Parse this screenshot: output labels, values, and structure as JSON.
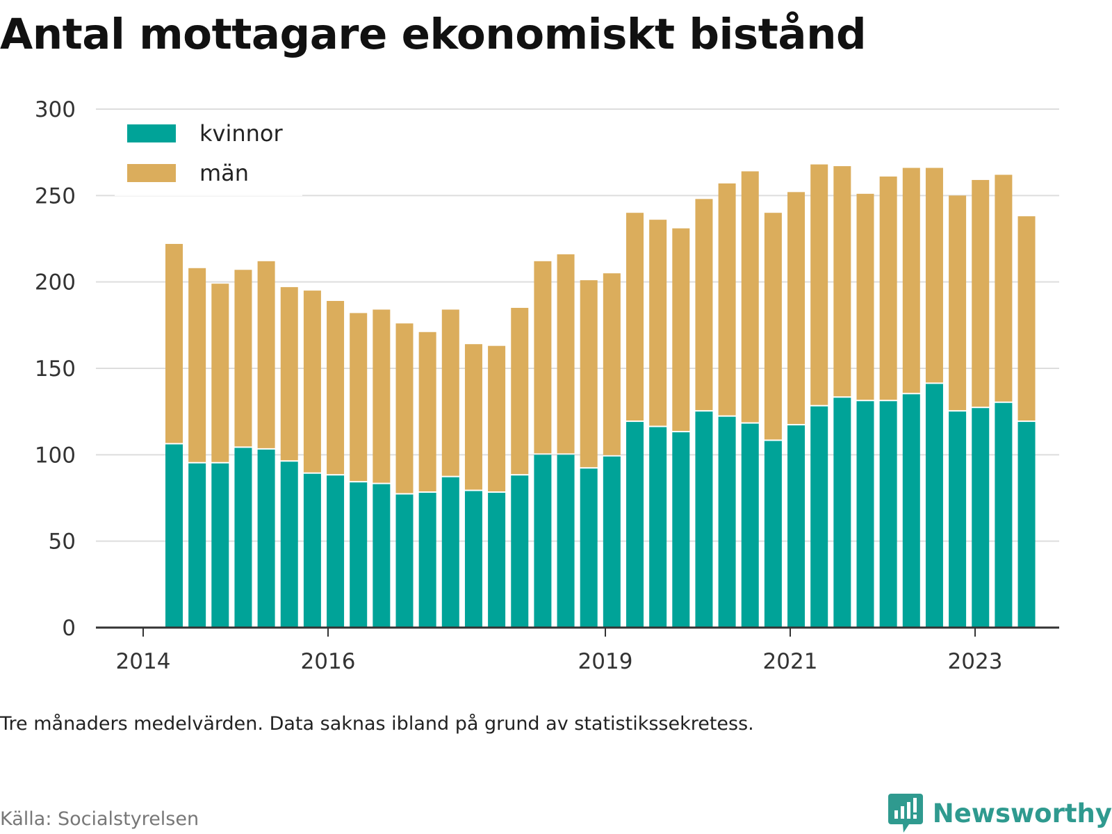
{
  "title": "Antal mottagare ekonomiskt bistånd",
  "note": "Tre månaders medelvärden. Data saknas ibland på grund av statistikssekretess.",
  "source": "Källa: Socialstyrelsen",
  "brand": {
    "name": "Newsworthy",
    "icon": "newsworthy-logo-icon",
    "color": "#2f9a8f"
  },
  "colors": {
    "kvinnor": "#00a398",
    "man": "#dbad5c",
    "grid": "#dddddd",
    "axis": "#333333"
  },
  "chart_data": {
    "type": "bar",
    "stacked": true,
    "y_ticks": [
      0,
      50,
      100,
      150,
      200,
      250,
      300
    ],
    "ylim": [
      0,
      300
    ],
    "x_ticks": [
      "2014",
      "2016",
      "2019",
      "2021",
      "2023"
    ],
    "legend_position": "top-left",
    "grid": true,
    "series": [
      {
        "name": "kvinnor",
        "color": "#00a398",
        "values": [
          106,
          95,
          95,
          104,
          103,
          96,
          89,
          88,
          84,
          83,
          77,
          78,
          87,
          79,
          78,
          88,
          100,
          100,
          92,
          99,
          119,
          116,
          113,
          125,
          122,
          118,
          108,
          117,
          128,
          133,
          131,
          131,
          135,
          141,
          125,
          127,
          130,
          119
        ]
      },
      {
        "name": "män",
        "color": "#dbad5c",
        "values": [
          116,
          113,
          104,
          103,
          109,
          101,
          106,
          101,
          98,
          101,
          99,
          93,
          97,
          85,
          85,
          97,
          112,
          116,
          109,
          106,
          121,
          120,
          118,
          123,
          135,
          146,
          132,
          135,
          140,
          134,
          120,
          130,
          131,
          125,
          125,
          132,
          132,
          119
        ]
      }
    ]
  }
}
